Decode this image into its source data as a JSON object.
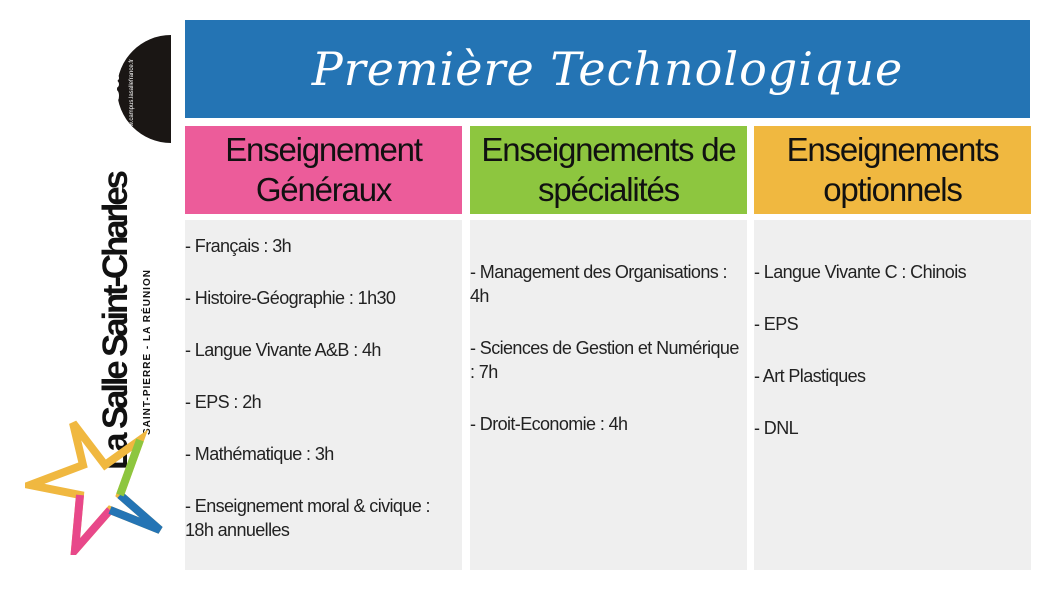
{
  "title": "Première Technologique",
  "colors": {
    "header": "#2474b4",
    "general": "#ec5c9a",
    "specialite": "#8dc63f",
    "optionnel": "#f0b840",
    "body": "#efefef"
  },
  "logo": {
    "campus_line1": "campus",
    "campus_line2": "La Salle",
    "campus_url": "www.campus.lasallefrance.fr",
    "school": "La Salle Saint-Charles",
    "location": "SAINT-PIERRE - LA RÉUNION"
  },
  "columns": [
    {
      "header": "Enseignement Généraux",
      "items": [
        "- Français : 3h",
        "- Histoire-Géographie : 1h30",
        "- Langue Vivante A&B : 4h",
        "- EPS : 2h",
        "- Mathématique : 3h",
        "- Enseignement moral & civique : 18h annuelles"
      ]
    },
    {
      "header": "Enseignements de spécialités",
      "items": [
        "- Management des Organisations  : 4h",
        " - Sciences de Gestion et Numérique : 7h",
        " - Droit-Economie : 4h"
      ]
    },
    {
      "header": "Enseignements optionnels",
      "items": [
        "- Langue Vivante C : Chinois",
        " - EPS",
        " - Art Plastiques",
        " - DNL"
      ]
    }
  ]
}
